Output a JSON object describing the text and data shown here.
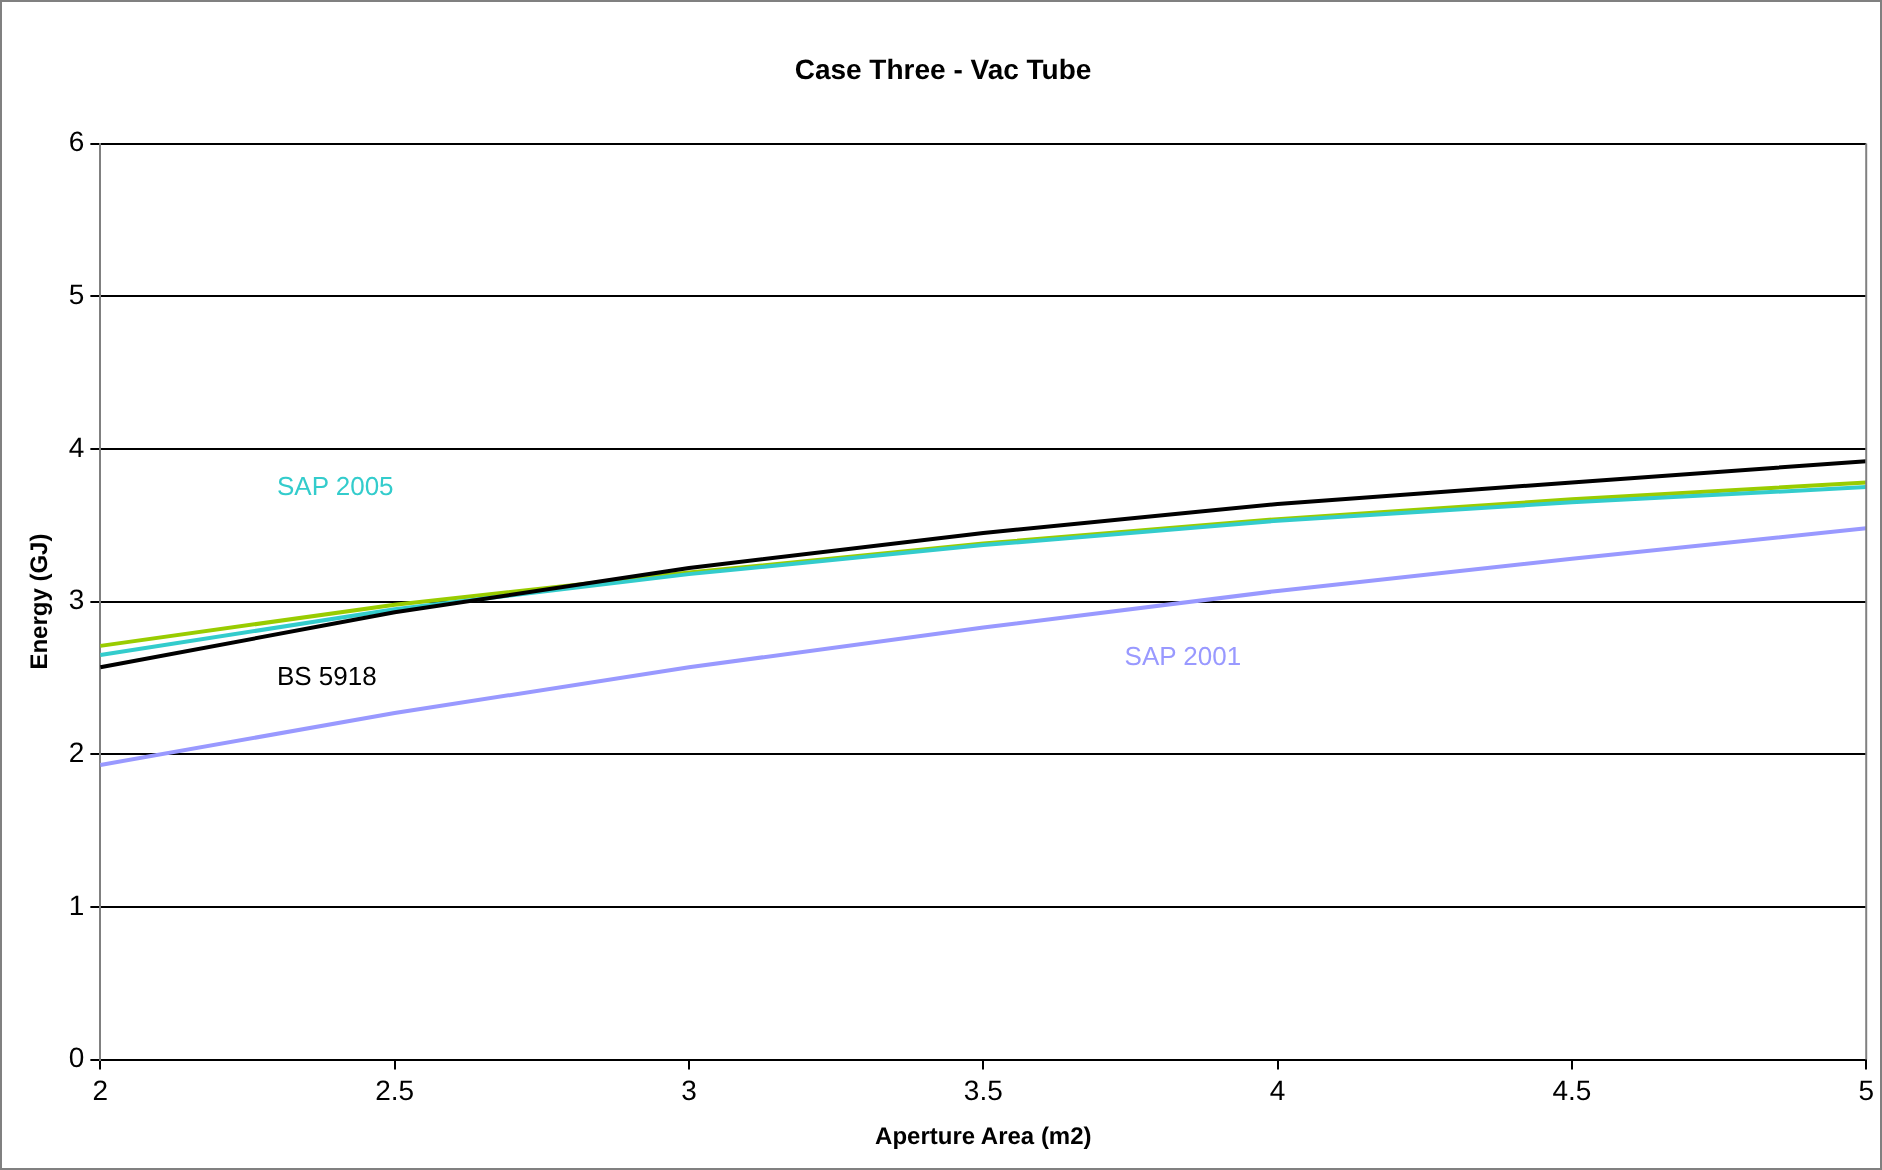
{
  "chart_data": {
    "type": "line",
    "title": "Case Three - Vac Tube",
    "xlabel": "Aperture Area (m2)",
    "ylabel": "Energy (GJ)",
    "x": [
      2,
      2.5,
      3,
      3.5,
      4,
      4.5,
      5
    ],
    "series": [
      {
        "name": "BS 5918",
        "color": "#000000",
        "values": [
          2.57,
          2.93,
          3.22,
          3.45,
          3.64,
          3.78,
          3.92
        ]
      },
      {
        "name": "SAP 2005",
        "color": "#33cccc",
        "values": [
          2.65,
          2.95,
          3.18,
          3.37,
          3.53,
          3.65,
          3.75
        ]
      },
      {
        "color": "#99cc00",
        "values": [
          2.71,
          2.98,
          3.19,
          3.38,
          3.54,
          3.67,
          3.78
        ]
      },
      {
        "name": "SAP 2001",
        "color": "#9999ff",
        "values": [
          1.93,
          2.27,
          2.57,
          2.83,
          3.07,
          3.28,
          3.48
        ]
      }
    ],
    "xlim": [
      2,
      5
    ],
    "xticks": [
      2,
      2.5,
      3,
      3.5,
      4,
      4.5,
      5
    ],
    "ylim": [
      0,
      6
    ],
    "yticks": [
      0,
      1,
      2,
      3,
      4,
      5,
      6
    ],
    "grid": "y",
    "legend": false,
    "marker": "none",
    "line_style": "solid"
  }
}
